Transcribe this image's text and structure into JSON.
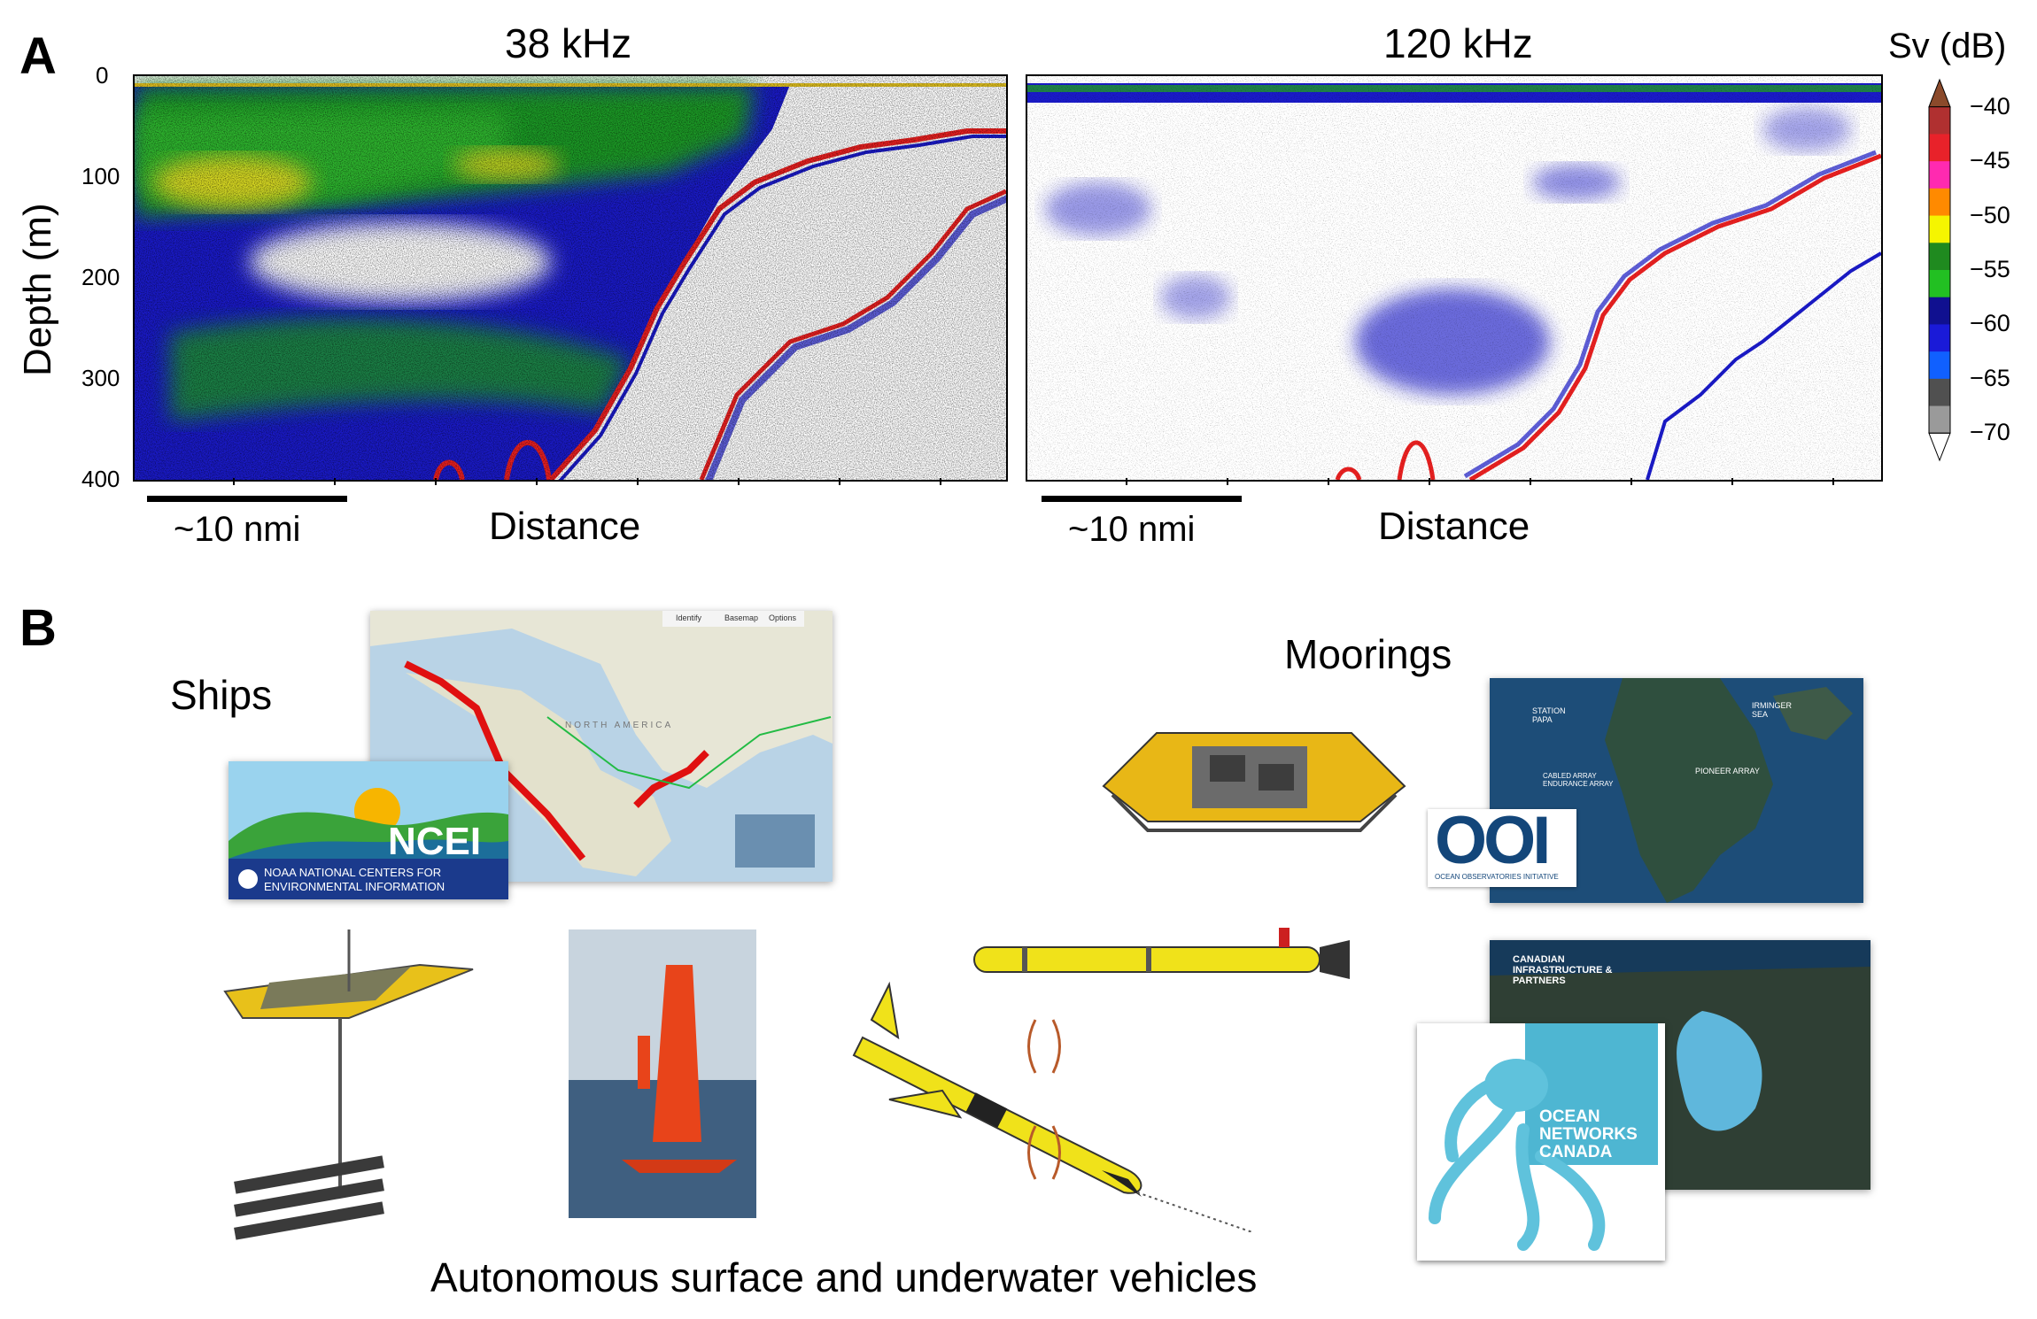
{
  "panel_a": {
    "letter": "A",
    "ylabel": "Depth (m)",
    "depth_ticks": [
      "0",
      "100",
      "200",
      "300",
      "400"
    ],
    "left": {
      "title": "38 kHz",
      "scale_label": "~10 nmi",
      "xlabel": "Distance"
    },
    "right": {
      "title": "120 kHz",
      "scale_label": "~10 nmi",
      "xlabel": "Distance"
    },
    "colorbar": {
      "title": "Sv (dB)",
      "ticks": [
        "−40",
        "−45",
        "−50",
        "−55",
        "−60",
        "−65",
        "−70"
      ],
      "colors": [
        "#8b4a2b",
        "#b03030",
        "#e8222a",
        "#ff2ab0",
        "#ff8a00",
        "#f5f500",
        "#1f8a1f",
        "#22c022",
        "#101090",
        "#1a1ad8",
        "#1060ff",
        "#505050",
        "#9a9a9a",
        "#ffffff"
      ]
    }
  },
  "panel_b": {
    "letter": "B",
    "ships_label": "Ships",
    "moorings_label": "Moorings",
    "vehicles_label": "Autonomous surface and underwater vehicles",
    "ncei": {
      "acronym": "NCEI",
      "line1": "NOAA NATIONAL CENTERS FOR",
      "line2": "ENVIRONMENTAL INFORMATION",
      "map_land": "NORTH AMERICA",
      "map_toolbar": [
        "Identify",
        "Basemap",
        "Options"
      ]
    },
    "ooi": {
      "acronym": "OOI",
      "caption": "OCEAN OBSERVATORIES INITIATIVE",
      "map_labels": [
        "STATION PAPA",
        "CABLED ARRAY ENDURANCE ARRAY",
        "PIONEER ARRAY",
        "IRMINGER SEA"
      ]
    },
    "onc": {
      "logo_text": [
        "OCEAN",
        "NETWORKS",
        "CANADA"
      ],
      "map_title": "CANADIAN INFRASTRUCTURE & PARTNERS"
    }
  }
}
